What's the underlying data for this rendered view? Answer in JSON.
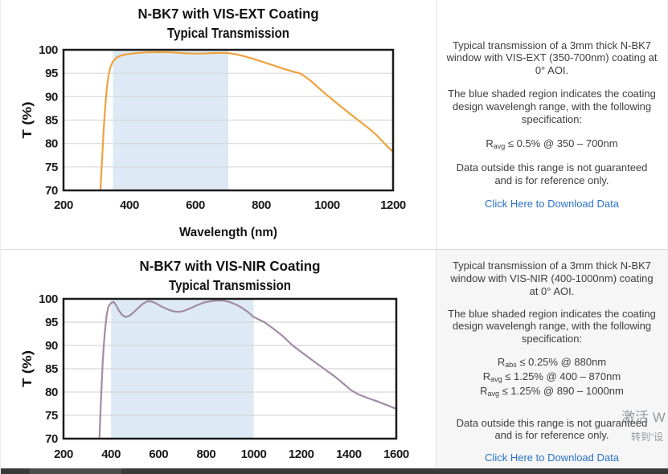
{
  "colors": {
    "shade": "#dde9f4",
    "grid": "#d8d8d8",
    "plot_border": "#1a1a1a",
    "curve_vis_ext": "#efa23e",
    "curve_vis_nir": "#a18ba6",
    "link": "#2a72c8",
    "panel_bottom_bg": "#f6f6f6",
    "body_text": "#3d3d3d"
  },
  "watermark": {
    "line1": "激活 W",
    "line2": "转到“设"
  },
  "sections": [
    {
      "chart_data": {
        "type": "line",
        "title": "N-BK7 with VIS-EXT Coating",
        "subtitle": "Typical Transmission",
        "xlabel": "Wavelength (nm)",
        "ylabel": "T (%)",
        "xlim": [
          200,
          1200
        ],
        "ylim": [
          70,
          100
        ],
        "xticks": [
          200,
          400,
          600,
          800,
          1000,
          1200
        ],
        "yticks": [
          70,
          75,
          80,
          85,
          90,
          95,
          100
        ],
        "grid": "horizontal",
        "legend": "none",
        "shaded_region": [
          350,
          700
        ],
        "series": [
          {
            "name": "N-BK7 VIS-EXT coated transmission",
            "color": "#efa23e",
            "points": [
              [
                312,
                70
              ],
              [
                315,
                74
              ],
              [
                318,
                78
              ],
              [
                322,
                83
              ],
              [
                326,
                87.5
              ],
              [
                331,
                91.5
              ],
              [
                336,
                94.3
              ],
              [
                342,
                96.2
              ],
              [
                350,
                97.5
              ],
              [
                360,
                98.3
              ],
              [
                375,
                98.8
              ],
              [
                395,
                99.1
              ],
              [
                420,
                99.3
              ],
              [
                450,
                99.45
              ],
              [
                490,
                99.5
              ],
              [
                530,
                99.45
              ],
              [
                560,
                99.3
              ],
              [
                590,
                99.2
              ],
              [
                620,
                99.2
              ],
              [
                650,
                99.3
              ],
              [
                680,
                99.35
              ],
              [
                700,
                99.3
              ],
              [
                720,
                99.1
              ],
              [
                750,
                98.6
              ],
              [
                780,
                98
              ],
              [
                810,
                97.3
              ],
              [
                840,
                96.6
              ],
              [
                870,
                95.9
              ],
              [
                900,
                95.3
              ],
              [
                920,
                94.9
              ],
              [
                950,
                93.4
              ],
              [
                980,
                91.5
              ],
              [
                1005,
                90
              ],
              [
                1040,
                88
              ],
              [
                1070,
                86.3
              ],
              [
                1090,
                85.2
              ],
              [
                1120,
                83.6
              ],
              [
                1150,
                81.8
              ],
              [
                1170,
                80.3
              ],
              [
                1185,
                79.2
              ],
              [
                1200,
                78.2
              ]
            ]
          }
        ]
      },
      "panel": {
        "p1": "Typical transmission of a 3mm thick N-BK7 window with VIS-EXT (350-700nm) coating at 0° AOI.",
        "p2": "The blue shaded region indicates the coating design wavelengh range, with the following specification:",
        "specs": [
          {
            "prefix": "R",
            "sub": "avg",
            "rest": " ≤ 0.5% @ 350 – 700nm"
          }
        ],
        "p3": "Data outside this range is not guaranteed and is for reference only.",
        "link": "Click Here to Download Data"
      }
    },
    {
      "chart_data": {
        "type": "line",
        "title": "N-BK7 with VIS-NIR Coating",
        "subtitle": "Typical Transmission",
        "xlabel": "",
        "ylabel": "T (%)",
        "xlim": [
          200,
          1600
        ],
        "ylim": [
          70,
          100
        ],
        "xticks": [
          200,
          400,
          600,
          800,
          1000,
          1200,
          1400,
          1600
        ],
        "yticks": [
          70,
          75,
          80,
          85,
          90,
          95,
          100
        ],
        "grid": "horizontal",
        "legend": "none",
        "shaded_region": [
          400,
          1000
        ],
        "series": [
          {
            "name": "N-BK7 VIS-NIR coated transmission",
            "color": "#a18ba6",
            "points": [
              [
                351,
                70
              ],
              [
                354,
                73.5
              ],
              [
                357,
                77.5
              ],
              [
                361,
                82
              ],
              [
                365,
                86.5
              ],
              [
                370,
                90.5
              ],
              [
                375,
                93.5
              ],
              [
                381,
                96.3
              ],
              [
                388,
                98.2
              ],
              [
                396,
                98.9
              ],
              [
                404,
                99.25
              ],
              [
                412,
                99.3
              ],
              [
                422,
                98.6
              ],
              [
                434,
                97.4
              ],
              [
                448,
                96.5
              ],
              [
                462,
                96.1
              ],
              [
                478,
                96.4
              ],
              [
                495,
                97.1
              ],
              [
                515,
                98.1
              ],
              [
                535,
                99
              ],
              [
                555,
                99.5
              ],
              [
                572,
                99.4
              ],
              [
                590,
                99
              ],
              [
                615,
                98.3
              ],
              [
                640,
                97.7
              ],
              [
                665,
                97.3
              ],
              [
                685,
                97.2
              ],
              [
                705,
                97.4
              ],
              [
                730,
                97.9
              ],
              [
                760,
                98.6
              ],
              [
                790,
                99.2
              ],
              [
                820,
                99.5
              ],
              [
                848,
                99.65
              ],
              [
                875,
                99.6
              ],
              [
                900,
                99.3
              ],
              [
                925,
                98.8
              ],
              [
                950,
                98.1
              ],
              [
                975,
                97.2
              ],
              [
                1000,
                96.1
              ],
              [
                1045,
                95
              ],
              [
                1080,
                93.7
              ],
              [
                1120,
                92.1
              ],
              [
                1164,
                90
              ],
              [
                1200,
                88.6
              ],
              [
                1250,
                86.7
              ],
              [
                1296,
                85
              ],
              [
                1340,
                83.4
              ],
              [
                1380,
                81.7
              ],
              [
                1410,
                80.4
              ],
              [
                1440,
                79.5
              ],
              [
                1480,
                78.7
              ],
              [
                1520,
                78
              ],
              [
                1560,
                77.2
              ],
              [
                1600,
                76.4
              ]
            ]
          }
        ]
      },
      "panel": {
        "p1": "Typical transmission of a 3mm thick N-BK7 window with VIS-NIR (400-1000nm) coating at 0° AOI.",
        "p2": "The blue shaded region indicates the coating design wavelengh range, with the following specification:",
        "specs": [
          {
            "prefix": "R",
            "sub": "abs",
            "rest": " ≤ 0.25% @ 880nm"
          },
          {
            "prefix": "R",
            "sub": "avg",
            "rest": " ≤ 1.25% @ 400 – 870nm"
          },
          {
            "prefix": "R",
            "sub": "avg",
            "rest": " ≤ 1.25% @ 890 – 1000nm"
          }
        ],
        "p3": "Data outside this range is not guaranteed and is for reference only.",
        "link": "Click Here to Download Data"
      }
    }
  ]
}
